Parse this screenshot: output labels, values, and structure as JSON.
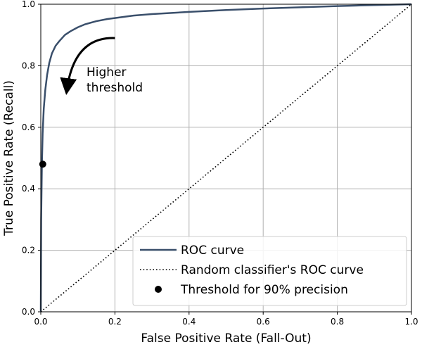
{
  "chart_data": {
    "type": "line",
    "xlabel": "False Positive Rate (Fall-Out)",
    "ylabel": "True Positive Rate (Recall)",
    "xlim": [
      0,
      1
    ],
    "ylim": [
      0,
      1
    ],
    "grid": true,
    "x_ticks": [
      "0.0",
      "0.2",
      "0.4",
      "0.6",
      "0.8",
      "1.0"
    ],
    "y_ticks": [
      "0.0",
      "0.2",
      "0.4",
      "0.6",
      "0.8",
      "1.0"
    ],
    "legend_position": "lower right",
    "series": [
      {
        "name": "ROC curve",
        "style": "solid",
        "color": "#3a4f6b",
        "x": [
          0,
          0.001,
          0.003,
          0.005,
          0.008,
          0.012,
          0.017,
          0.023,
          0.03,
          0.04,
          0.05,
          0.065,
          0.08,
          0.1,
          0.12,
          0.15,
          0.18,
          0.2,
          0.25,
          0.3,
          0.4,
          0.5,
          0.6,
          0.7,
          0.8,
          0.9,
          1.0
        ],
        "y": [
          0,
          0.3,
          0.48,
          0.58,
          0.66,
          0.72,
          0.77,
          0.81,
          0.84,
          0.865,
          0.88,
          0.9,
          0.912,
          0.925,
          0.935,
          0.945,
          0.952,
          0.955,
          0.963,
          0.968,
          0.975,
          0.981,
          0.986,
          0.99,
          0.994,
          0.997,
          1.0
        ]
      },
      {
        "name": "Random classifier's ROC curve",
        "style": "dotted",
        "color": "#000000",
        "x": [
          0,
          1
        ],
        "y": [
          0,
          1
        ]
      },
      {
        "name": "Threshold for 90% precision",
        "style": "point",
        "color": "#000000",
        "x": [
          0.0053
        ],
        "y": [
          0.48
        ]
      }
    ],
    "annotations": [
      {
        "text_lines": [
          "Higher",
          "threshold"
        ],
        "arrow_from": [
          0.2,
          0.89
        ],
        "arrow_to": [
          0.07,
          0.7
        ]
      }
    ]
  }
}
